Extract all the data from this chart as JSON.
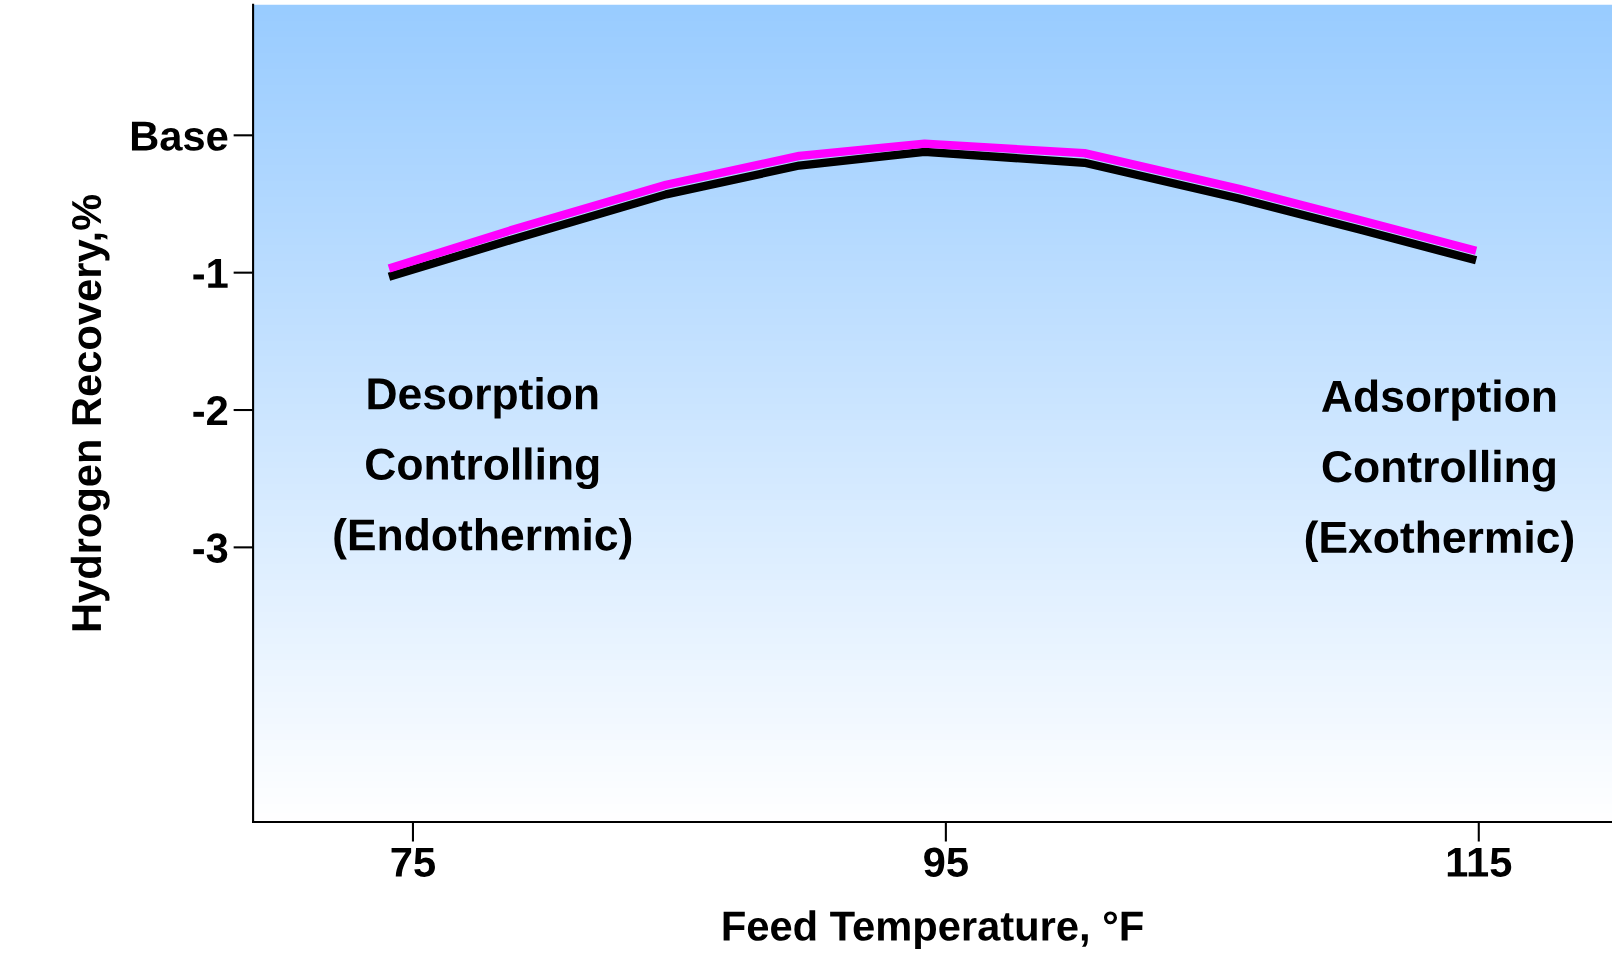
{
  "chart_data": {
    "type": "line",
    "xlabel": "Feed Temperature, °F",
    "ylabel": "Hydrogen Recovery,%",
    "x": [
      74.1,
      78.7,
      84.5,
      89.5,
      94.2,
      100.2,
      106,
      110.6,
      114.9
    ],
    "series": [
      {
        "color": "#000000",
        "values": [
          -1.03,
          -0.76,
          -0.43,
          -0.22,
          -0.12,
          -0.2,
          -0.46,
          -0.69,
          -0.91
        ]
      },
      {
        "color": "#ff00ff",
        "values": [
          -0.97,
          -0.69,
          -0.36,
          -0.15,
          -0.06,
          -0.13,
          -0.39,
          -0.62,
          -0.84
        ]
      }
    ],
    "xlim": [
      69,
      120
    ],
    "xticks": [
      75,
      95,
      115
    ],
    "ylim": [
      -5,
      0.95
    ],
    "yticks": [
      {
        "value": 0,
        "label": "Base"
      },
      -1,
      -2,
      -3
    ],
    "grid": false,
    "marker": "none",
    "line_style": "solid",
    "annotations": [
      "Desorption\nControlling\n(Endothermic)",
      "Adsorption\nControlling\n(Exothermic)"
    ]
  }
}
